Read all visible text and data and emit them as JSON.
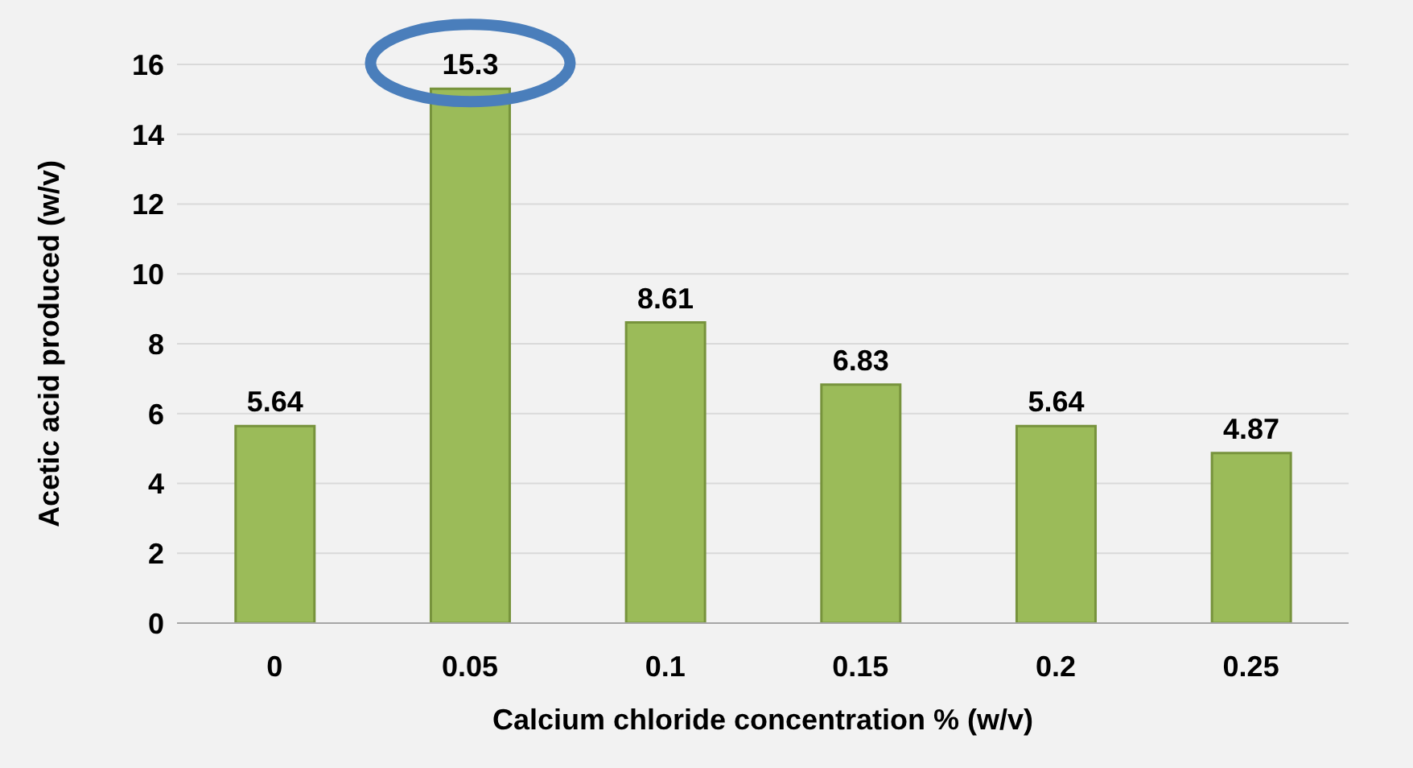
{
  "chart_data": {
    "type": "bar",
    "xlabel": "Calcium chloride concentration % (w/v)",
    "ylabel": "Acetic acid produced (w/v)",
    "categories": [
      "0",
      "0.05",
      "0.1",
      "0.15",
      "0.2",
      "0.25"
    ],
    "values": [
      5.64,
      15.3,
      8.61,
      6.83,
      5.64,
      4.87
    ],
    "color": "#9bbb59",
    "ylim": [
      0,
      16
    ],
    "yticks": [
      0,
      2,
      4,
      6,
      8,
      10,
      12,
      14,
      16
    ],
    "grid": "y",
    "data_labels": true
  }
}
